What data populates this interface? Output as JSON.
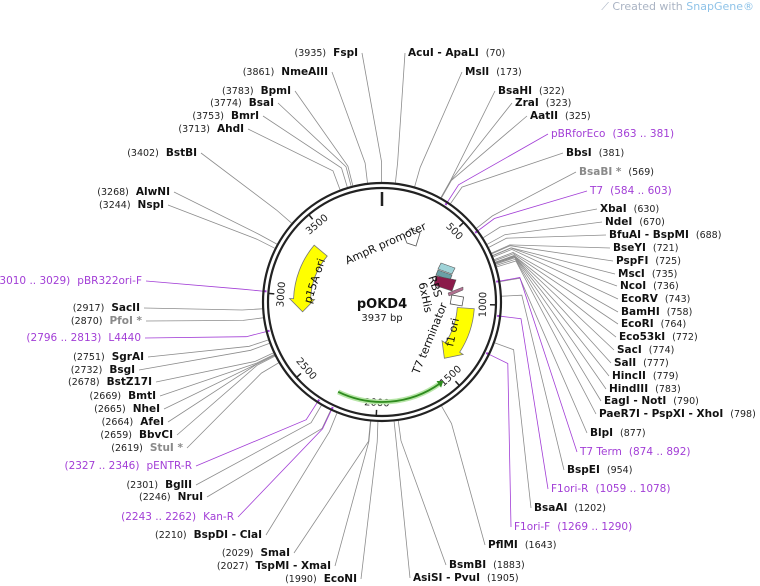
{
  "watermark": {
    "text": "Created with ",
    "brand": "SnapGene®"
  },
  "plasmid": {
    "name": "pOKD4",
    "size": "3937 bp",
    "length": 3937
  },
  "ticks": [
    "500",
    "1000",
    "1500",
    "2000",
    "2500",
    "3000",
    "3500"
  ],
  "features": [
    {
      "label": "p15A ori",
      "color": "#ffff00"
    },
    {
      "label": "f1 ori",
      "color": "#ffff00"
    },
    {
      "label": "AmpR promoter",
      "color": "#ffffff"
    },
    {
      "label": "RBS",
      "color": "#ffffff"
    },
    {
      "label": "6xHis",
      "color": "#8b1a4a"
    },
    {
      "label": "T7 terminator",
      "color": "#ffffff"
    },
    {
      "label": "",
      "color": "#2e8b1e"
    }
  ],
  "colors": {
    "enzyme": "#111111",
    "nonunique": "#8a8a8a",
    "primer": "#a23ed6",
    "backbone": "#222222"
  },
  "sites": [
    {
      "name": "FspI",
      "pos": "(3935)",
      "kind": "enzyme"
    },
    {
      "name": "AcuI  -  ApaLI",
      "pos": "(70)",
      "kind": "enzyme"
    },
    {
      "name": "NmeAIII",
      "pos": "(3861)",
      "kind": "enzyme"
    },
    {
      "name": "MslI",
      "pos": "(173)",
      "kind": "enzyme"
    },
    {
      "name": "BpmI",
      "pos": "(3783)",
      "kind": "enzyme"
    },
    {
      "name": "BsaHI",
      "pos": "(322)",
      "kind": "enzyme"
    },
    {
      "name": "BsaI",
      "pos": "(3774)",
      "kind": "enzyme"
    },
    {
      "name": "ZraI",
      "pos": "(323)",
      "kind": "enzyme"
    },
    {
      "name": "BmrI",
      "pos": "(3753)",
      "kind": "enzyme"
    },
    {
      "name": "AatII",
      "pos": "(325)",
      "kind": "enzyme"
    },
    {
      "name": "AhdI",
      "pos": "(3713)",
      "kind": "enzyme"
    },
    {
      "name": "pBRforEco",
      "pos": "(363 .. 381)",
      "kind": "primer"
    },
    {
      "name": "BstBI",
      "pos": "(3402)",
      "kind": "enzyme"
    },
    {
      "name": "BbsI",
      "pos": "(381)",
      "kind": "enzyme"
    },
    {
      "name": "BsaBI *",
      "pos": "(569)",
      "kind": "nonunique"
    },
    {
      "name": "T7",
      "pos": "(584 .. 603)",
      "kind": "primer"
    },
    {
      "name": "AlwNI",
      "pos": "(3268)",
      "kind": "enzyme"
    },
    {
      "name": "NspI",
      "pos": "(3244)",
      "kind": "enzyme"
    },
    {
      "name": "XbaI",
      "pos": "(630)",
      "kind": "enzyme"
    },
    {
      "name": "NdeI",
      "pos": "(670)",
      "kind": "enzyme"
    },
    {
      "name": "BfuAI  -  BspMI",
      "pos": "(688)",
      "kind": "enzyme"
    },
    {
      "name": "BseYI",
      "pos": "(721)",
      "kind": "enzyme"
    },
    {
      "name": "PspFI",
      "pos": "(725)",
      "kind": "enzyme"
    },
    {
      "name": "MscI",
      "pos": "(735)",
      "kind": "enzyme"
    },
    {
      "name": "NcoI",
      "pos": "(736)",
      "kind": "enzyme"
    },
    {
      "name": "pBR322ori-F",
      "pos": "(3010 .. 3029)",
      "kind": "primer"
    },
    {
      "name": "EcoRV",
      "pos": "(743)",
      "kind": "enzyme"
    },
    {
      "name": "BamHI",
      "pos": "(758)",
      "kind": "enzyme"
    },
    {
      "name": "SacII",
      "pos": "(2917)",
      "kind": "enzyme"
    },
    {
      "name": "PfoI *",
      "pos": "(2870)",
      "kind": "nonunique"
    },
    {
      "name": "EcoRI",
      "pos": "(764)",
      "kind": "enzyme"
    },
    {
      "name": "Eco53kI",
      "pos": "(772)",
      "kind": "enzyme"
    },
    {
      "name": "L4440",
      "pos": "(2796 .. 2813)",
      "kind": "primer"
    },
    {
      "name": "SacI",
      "pos": "(774)",
      "kind": "enzyme"
    },
    {
      "name": "SgrAI",
      "pos": "(2751)",
      "kind": "enzyme"
    },
    {
      "name": "SalI",
      "pos": "(777)",
      "kind": "enzyme"
    },
    {
      "name": "BsgI",
      "pos": "(2732)",
      "kind": "enzyme"
    },
    {
      "name": "HincII",
      "pos": "(779)",
      "kind": "enzyme"
    },
    {
      "name": "BstZ17I",
      "pos": "(2678)",
      "kind": "enzyme"
    },
    {
      "name": "HindIII",
      "pos": "(783)",
      "kind": "enzyme"
    },
    {
      "name": "BmtI",
      "pos": "(2669)",
      "kind": "enzyme"
    },
    {
      "name": "EagI  -  NotI",
      "pos": "(790)",
      "kind": "enzyme"
    },
    {
      "name": "NheI",
      "pos": "(2665)",
      "kind": "enzyme"
    },
    {
      "name": "PaeR7I  -  PspXI  -  XhoI",
      "pos": "(798)",
      "kind": "enzyme"
    },
    {
      "name": "AfeI",
      "pos": "(2664)",
      "kind": "enzyme"
    },
    {
      "name": "BbvCI",
      "pos": "(2659)",
      "kind": "enzyme"
    },
    {
      "name": "BlpI",
      "pos": "(877)",
      "kind": "enzyme"
    },
    {
      "name": "StuI *",
      "pos": "(2619)",
      "kind": "nonunique"
    },
    {
      "name": "T7 Term",
      "pos": "(874 .. 892)",
      "kind": "primer"
    },
    {
      "name": "pENTR-R",
      "pos": "(2327 .. 2346)",
      "kind": "primer"
    },
    {
      "name": "BspEI",
      "pos": "(954)",
      "kind": "enzyme"
    },
    {
      "name": "BglII",
      "pos": "(2301)",
      "kind": "enzyme"
    },
    {
      "name": "F1ori-R",
      "pos": "(1059 .. 1078)",
      "kind": "primer"
    },
    {
      "name": "NruI",
      "pos": "(2246)",
      "kind": "enzyme"
    },
    {
      "name": "Kan-R",
      "pos": "(2243 .. 2262)",
      "kind": "primer"
    },
    {
      "name": "BsaAI",
      "pos": "(1202)",
      "kind": "enzyme"
    },
    {
      "name": "F1ori-F",
      "pos": "(1269 .. 1290)",
      "kind": "primer"
    },
    {
      "name": "BspDI  -  ClaI",
      "pos": "(2210)",
      "kind": "enzyme"
    },
    {
      "name": "PflMI",
      "pos": "(1643)",
      "kind": "enzyme"
    },
    {
      "name": "SmaI",
      "pos": "(2029)",
      "kind": "enzyme"
    },
    {
      "name": "TspMI  -  XmaI",
      "pos": "(2027)",
      "kind": "enzyme"
    },
    {
      "name": "BsmBI",
      "pos": "(1883)",
      "kind": "enzyme"
    },
    {
      "name": "EcoNI",
      "pos": "(1990)",
      "kind": "enzyme"
    },
    {
      "name": "AsiSI  -  PvuI",
      "pos": "(1905)",
      "kind": "enzyme"
    }
  ]
}
